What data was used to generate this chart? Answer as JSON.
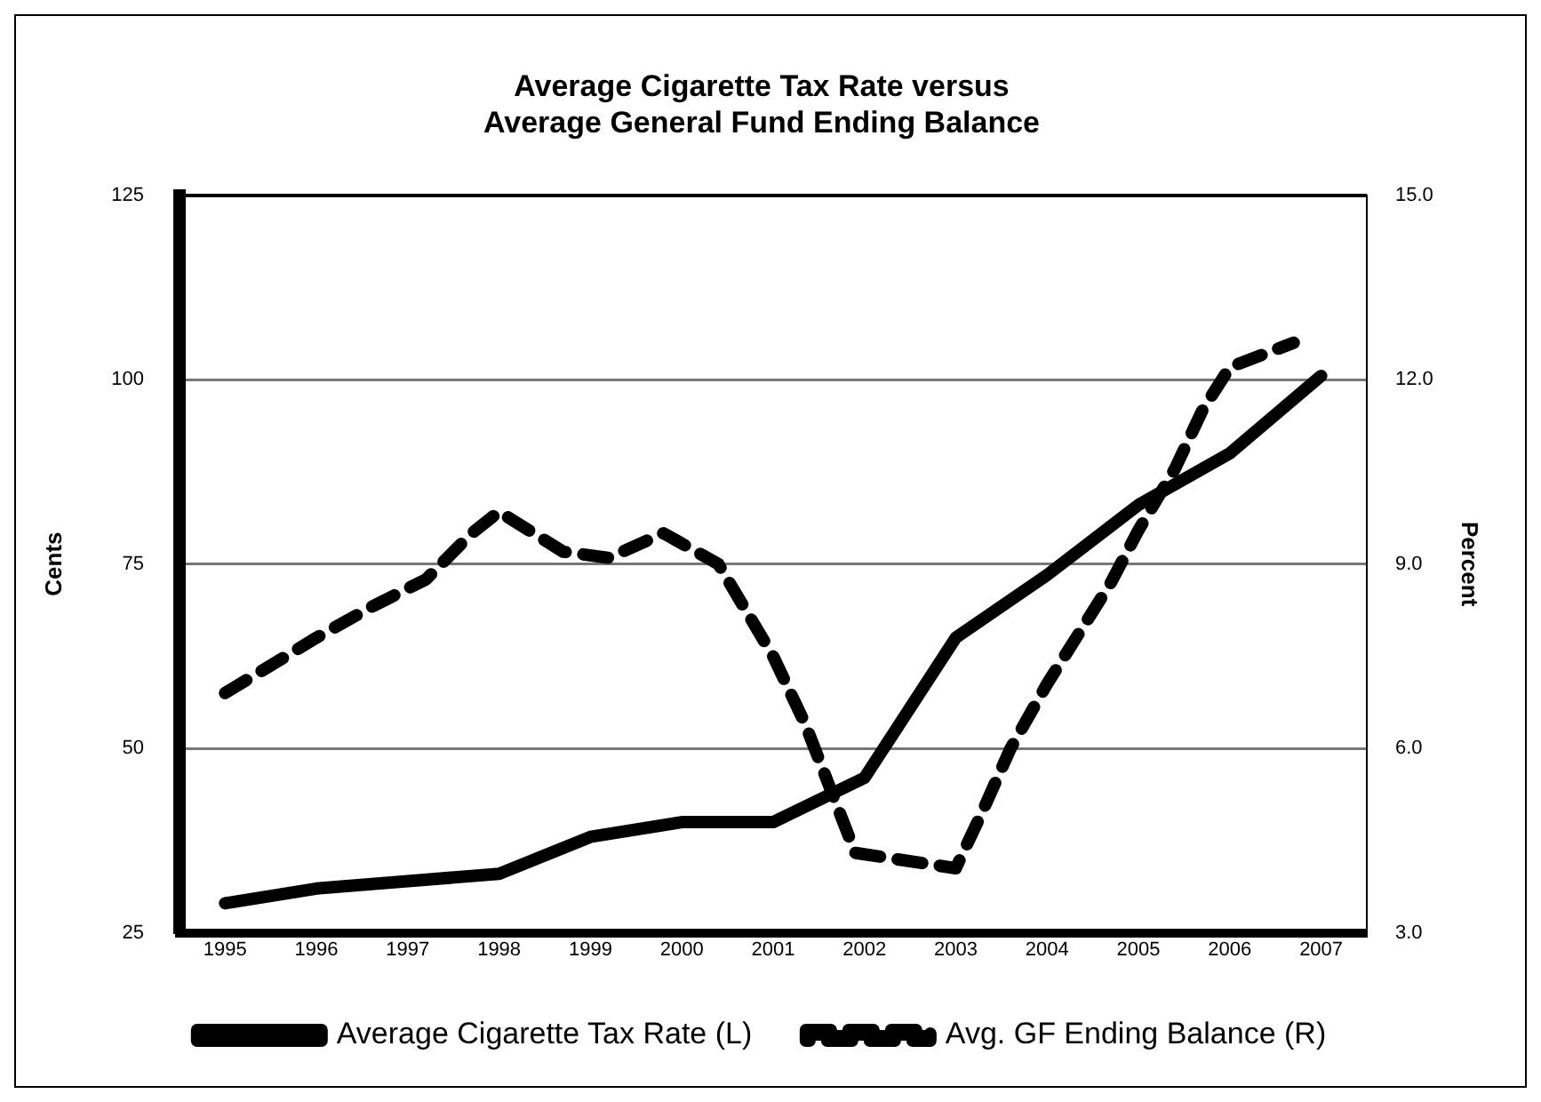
{
  "chart_data": {
    "type": "line",
    "title": "Average Cigarette Tax Rate versus Average General Fund Ending Balance",
    "ylabel": "Cents",
    "y2label": "Percent",
    "xlim": [
      1994.5,
      2007.5
    ],
    "xticks": [
      1995,
      1996,
      1997,
      1998,
      1999,
      2000,
      2001,
      2002,
      2003,
      2004,
      2005,
      2006,
      2007
    ],
    "ylim": [
      25,
      125
    ],
    "yticks": [
      25,
      50,
      75,
      100,
      125
    ],
    "y2lim": [
      3,
      15
    ],
    "y2ticks": [
      {
        "value": 3,
        "label": "3.0"
      },
      {
        "value": 6,
        "label": "6.0"
      },
      {
        "value": 9,
        "label": "9.0"
      },
      {
        "value": 12,
        "label": "12.0"
      },
      {
        "value": 15,
        "label": "15.0"
      }
    ],
    "grid": "y",
    "legend": "bottom",
    "marker": "none",
    "series": [
      {
        "name": "Average Cigarette Tax Rate (L)",
        "color": "#000000",
        "line_style": "solid",
        "x": [
          1995,
          1996,
          1997,
          1998,
          1999,
          2000,
          2001,
          2002,
          2003,
          2004,
          2005,
          2006,
          2007
        ],
        "values": [
          29,
          31,
          32,
          33,
          38,
          40,
          40,
          46,
          65,
          73.5,
          83,
          90,
          100.5
        ]
      },
      {
        "name": "Avg. GF Ending Balance (R)",
        "color": "#000000",
        "axis": "y2",
        "line_style": "dashed",
        "x": [
          1995,
          1996,
          1996.6,
          1997.2,
          1997.7,
          1998,
          1998.7,
          1999.2,
          1999.8,
          2000.4,
          2001,
          2001.35,
          2001.9,
          2003,
          2003.3,
          2003.6,
          2004,
          2004.7,
          2005,
          2005.4,
          2005.7,
          2006,
          2006.7
        ],
        "values": [
          6.9,
          7.8,
          8.3,
          8.75,
          9.5,
          9.85,
          9.2,
          9.1,
          9.5,
          9.0,
          7.5,
          6.4,
          4.3,
          4.05,
          5.0,
          6.0,
          7.05,
          8.7,
          9.55,
          10.55,
          11.5,
          12.2,
          12.6
        ]
      }
    ]
  }
}
